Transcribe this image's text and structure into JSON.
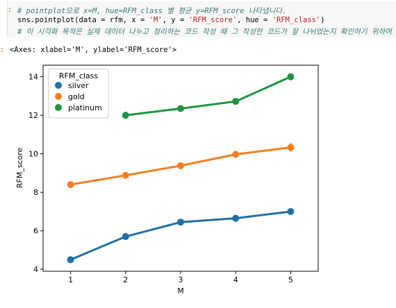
{
  "cell": {
    "in_prompt": ":",
    "out_prompt": ":",
    "line1": "# pointplot으로 x=M, hue=RFM_class 별 평균 y=RFM_score 나타냅니다.",
    "line2_a": "sns.pointplot(data = rfm, x = ",
    "line2_s1": "'M'",
    "line2_b": ", y = ",
    "line2_s2": "'RFM_score'",
    "line2_c": ", hue = ",
    "line2_s3": "'RFM_class'",
    "line2_d": ")",
    "line3": "# 이 시각화 목적은 실제 데이터 나누고 정리하는 코드 작성 때 그 작성한 코드가 잘 나뉘었는지 확인하기 위하여",
    "output": "<Axes: xlabel='M', ylabel='RFM_score'>"
  },
  "chart_data": {
    "type": "line",
    "x": [
      1,
      2,
      3,
      4,
      5
    ],
    "xlabel": "M",
    "ylabel": "RFM_score",
    "ylim": [
      3.9,
      14.6
    ],
    "yticks": [
      4,
      6,
      8,
      10,
      12,
      14
    ],
    "legend_title": "RFM_class",
    "legend_position": "top-left",
    "grid": false,
    "series": [
      {
        "name": "silver",
        "color": "#1f6fa8",
        "values": [
          4.5,
          5.7,
          6.45,
          6.65,
          7.0
        ],
        "err": [
          0,
          0,
          0,
          0.18,
          0
        ]
      },
      {
        "name": "gold",
        "color": "#f47f20",
        "values": [
          8.4,
          8.88,
          9.38,
          9.97,
          10.33
        ],
        "err": [
          0.15,
          0,
          0,
          0,
          0.22
        ]
      },
      {
        "name": "platinum",
        "color": "#1d9641",
        "values": [
          null,
          12.0,
          12.35,
          12.72,
          14.0
        ],
        "err": [
          0,
          0,
          0,
          0,
          0
        ]
      }
    ]
  }
}
